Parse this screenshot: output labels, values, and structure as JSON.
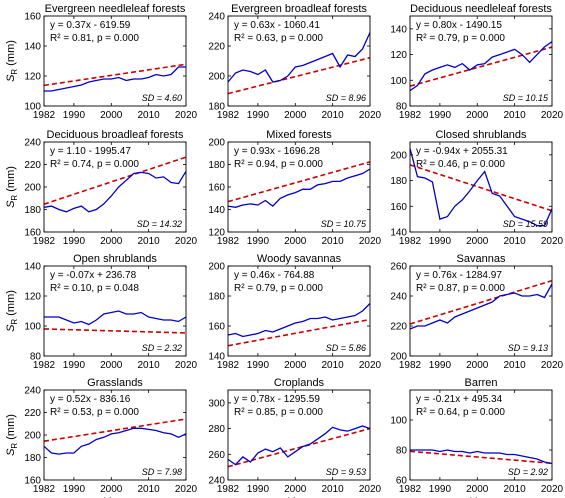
{
  "figure": {
    "x_label": "Year",
    "y_label_main": "S",
    "y_label_sub": "R",
    "y_label_unit": " (mm)"
  },
  "chart_data": [
    {
      "type": "line",
      "title": "Evergreen needleleaf forests",
      "x": [
        1982,
        1984,
        1986,
        1988,
        1990,
        1992,
        1994,
        1996,
        1998,
        2000,
        2002,
        2004,
        2006,
        2008,
        2010,
        2012,
        2014,
        2016,
        2018,
        2020
      ],
      "series": [
        {
          "values": [
            110,
            110,
            111,
            112,
            113,
            114,
            116,
            117,
            118,
            118,
            119,
            117,
            118,
            118,
            119,
            121,
            120,
            121,
            126,
            126
          ]
        }
      ],
      "fit": {
        "slope": 0.37,
        "intercept": -619.59
      },
      "equation": "y = 0.37x - 619.59",
      "r2": "R² = 0.81, p = 0.000",
      "sd": "SD = 4.60",
      "xlim": [
        1982,
        2020
      ],
      "ylim": [
        100,
        160
      ],
      "yticks": [
        100,
        120,
        140,
        160
      ],
      "xticks": [
        1982,
        1990,
        2000,
        2010,
        2020
      ],
      "show_x_ticklabels": true,
      "show_ylabel": true,
      "show_xlabel": false
    },
    {
      "type": "line",
      "title": "Evergreen broadleaf forests",
      "x": [
        1982,
        1984,
        1986,
        1988,
        1990,
        1992,
        1994,
        1996,
        1998,
        2000,
        2002,
        2004,
        2006,
        2008,
        2010,
        2012,
        2014,
        2016,
        2018,
        2020
      ],
      "series": [
        {
          "values": [
            196,
            202,
            204,
            203,
            201,
            204,
            196,
            197,
            200,
            206,
            207,
            209,
            211,
            213,
            215,
            206,
            214,
            213,
            218,
            229
          ]
        }
      ],
      "fit": {
        "slope": 0.63,
        "intercept": -1060.41
      },
      "equation": "y = 0.63x - 1060.41",
      "r2": "R² = 0.63, p = 0.000",
      "sd": "SD = 8.96",
      "xlim": [
        1982,
        2020
      ],
      "ylim": [
        180,
        240
      ],
      "yticks": [
        180,
        200,
        220,
        240
      ],
      "xticks": [
        1982,
        1990,
        2000,
        2010,
        2020
      ],
      "show_x_ticklabels": true,
      "show_ylabel": false,
      "show_xlabel": false
    },
    {
      "type": "line",
      "title": "Deciduous needleleaf forests",
      "x": [
        1982,
        1984,
        1986,
        1988,
        1990,
        1992,
        1994,
        1996,
        1998,
        2000,
        2002,
        2004,
        2006,
        2008,
        2010,
        2012,
        2014,
        2016,
        2018,
        2020
      ],
      "series": [
        {
          "values": [
            92,
            96,
            105,
            108,
            110,
            112,
            110,
            113,
            108,
            112,
            113,
            118,
            120,
            122,
            124,
            120,
            114,
            120,
            126,
            130
          ]
        }
      ],
      "fit": {
        "slope": 0.8,
        "intercept": -1490.15
      },
      "equation": "y = 0.80x - 1490.15",
      "r2": "R² = 0.79, p = 0.000",
      "sd": "SD = 10.15",
      "xlim": [
        1982,
        2020
      ],
      "ylim": [
        80,
        150
      ],
      "yticks": [
        80,
        100,
        120,
        140
      ],
      "xticks": [
        1982,
        1990,
        2000,
        2010,
        2020
      ],
      "show_x_ticklabels": true,
      "show_ylabel": false,
      "show_xlabel": false
    },
    {
      "type": "line",
      "title": "Deciduous broadleaf forests",
      "x": [
        1982,
        1984,
        1986,
        1988,
        1990,
        1992,
        1994,
        1996,
        1998,
        2000,
        2002,
        2004,
        2006,
        2008,
        2010,
        2012,
        2014,
        2016,
        2018,
        2020
      ],
      "series": [
        {
          "values": [
            182,
            183,
            180,
            178,
            181,
            183,
            178,
            180,
            185,
            192,
            200,
            206,
            212,
            213,
            212,
            208,
            209,
            204,
            203,
            214
          ]
        }
      ],
      "fit": {
        "slope": 1.1,
        "intercept": -1995.47
      },
      "equation": "y = 1.10 - 1995.47",
      "r2": "R² = 0.74, p = 0.000",
      "sd": "SD = 14.32",
      "xlim": [
        1982,
        2020
      ],
      "ylim": [
        160,
        240
      ],
      "yticks": [
        160,
        180,
        200,
        220,
        240
      ],
      "xticks": [
        1982,
        1990,
        2000,
        2010,
        2020
      ],
      "show_x_ticklabels": true,
      "show_ylabel": true,
      "show_xlabel": false
    },
    {
      "type": "line",
      "title": "Mixed forests",
      "x": [
        1982,
        1984,
        1986,
        1988,
        1990,
        1992,
        1994,
        1996,
        1998,
        2000,
        2002,
        2004,
        2006,
        2008,
        2010,
        2012,
        2014,
        2016,
        2018,
        2020
      ],
      "series": [
        {
          "values": [
            143,
            142,
            144,
            145,
            144,
            148,
            143,
            150,
            153,
            155,
            158,
            158,
            162,
            163,
            165,
            165,
            168,
            170,
            172,
            176
          ]
        }
      ],
      "fit": {
        "slope": 0.93,
        "intercept": -1696.28
      },
      "equation": "y = 0.93x - 1696.28",
      "r2": "R² = 0.94, p = 0.000",
      "sd": "SD = 10.75",
      "xlim": [
        1982,
        2020
      ],
      "ylim": [
        120,
        200
      ],
      "yticks": [
        120,
        140,
        160,
        180,
        200
      ],
      "xticks": [
        1982,
        1990,
        2000,
        2010,
        2020
      ],
      "show_x_ticklabels": true,
      "show_ylabel": false,
      "show_xlabel": false
    },
    {
      "type": "line",
      "title": "Closed shrublands",
      "x": [
        1982,
        1984,
        1986,
        1988,
        1990,
        1992,
        1994,
        1996,
        1998,
        2000,
        2002,
        2004,
        2006,
        2008,
        2010,
        2012,
        2014,
        2016,
        2018,
        2020
      ],
      "series": [
        {
          "values": [
            205,
            183,
            182,
            179,
            150,
            152,
            160,
            165,
            172,
            180,
            187,
            170,
            168,
            160,
            152,
            150,
            148,
            145,
            145,
            158
          ]
        }
      ],
      "fit": {
        "slope": -0.94,
        "intercept": 2055.31
      },
      "equation": "y = -0.94x + 2055.31",
      "r2": "R² = 0.46, p = 0.000",
      "sd": "SD = 15.59",
      "xlim": [
        1982,
        2020
      ],
      "ylim": [
        140,
        210
      ],
      "yticks": [
        140,
        160,
        180,
        200
      ],
      "xticks": [
        1982,
        1990,
        2000,
        2010,
        2020
      ],
      "show_x_ticklabels": true,
      "show_ylabel": false,
      "show_xlabel": false
    },
    {
      "type": "line",
      "title": "Open shrublands",
      "x": [
        1982,
        1984,
        1986,
        1988,
        1990,
        1992,
        1994,
        1996,
        1998,
        2000,
        2002,
        2004,
        2006,
        2008,
        2010,
        2012,
        2014,
        2016,
        2018,
        2020
      ],
      "series": [
        {
          "values": [
            106,
            106,
            106,
            104,
            102,
            103,
            101,
            104,
            108,
            109,
            110,
            108,
            108,
            109,
            106,
            105,
            104,
            104,
            103,
            106
          ]
        }
      ],
      "fit": {
        "slope": -0.07,
        "intercept": 236.78
      },
      "equation": "y = -0.07x + 236.78",
      "r2": "R² = 0.10, p = 0.048",
      "sd": "SD = 2.32",
      "xlim": [
        1982,
        2020
      ],
      "ylim": [
        80,
        140
      ],
      "yticks": [
        80,
        100,
        120,
        140
      ],
      "xticks": [
        1982,
        1990,
        2000,
        2010,
        2020
      ],
      "show_x_ticklabels": true,
      "show_ylabel": true,
      "show_xlabel": false
    },
    {
      "type": "line",
      "title": "Woody savannas",
      "x": [
        1982,
        1984,
        1986,
        1988,
        1990,
        1992,
        1994,
        1996,
        1998,
        2000,
        2002,
        2004,
        2006,
        2008,
        2010,
        2012,
        2014,
        2016,
        2018,
        2020
      ],
      "series": [
        {
          "values": [
            154,
            155,
            153,
            154,
            155,
            157,
            156,
            158,
            160,
            162,
            163,
            165,
            165,
            166,
            164,
            165,
            166,
            167,
            170,
            175
          ]
        }
      ],
      "fit": {
        "slope": 0.46,
        "intercept": -764.88
      },
      "equation": "y = 0.46x - 764.88",
      "r2": "R² = 0.79, p = 0.000",
      "sd": "SD = 5.86",
      "xlim": [
        1982,
        2020
      ],
      "ylim": [
        140,
        200
      ],
      "yticks": [
        140,
        160,
        180,
        200
      ],
      "xticks": [
        1982,
        1990,
        2000,
        2010,
        2020
      ],
      "show_x_ticklabels": true,
      "show_ylabel": false,
      "show_xlabel": false
    },
    {
      "type": "line",
      "title": "Savannas",
      "x": [
        1982,
        1984,
        1986,
        1988,
        1990,
        1992,
        1994,
        1996,
        1998,
        2000,
        2002,
        2004,
        2006,
        2008,
        2010,
        2012,
        2014,
        2016,
        2018,
        2020
      ],
      "series": [
        {
          "values": [
            218,
            220,
            220,
            222,
            224,
            222,
            226,
            228,
            230,
            232,
            234,
            236,
            240,
            241,
            242,
            240,
            240,
            241,
            239,
            248
          ]
        }
      ],
      "fit": {
        "slope": 0.76,
        "intercept": -1284.97
      },
      "equation": "y = 0.76x - 1284.97",
      "r2": "R² = 0.87, p = 0.000",
      "sd": "SD = 9.13",
      "xlim": [
        1982,
        2020
      ],
      "ylim": [
        200,
        260
      ],
      "yticks": [
        200,
        220,
        240,
        260
      ],
      "xticks": [
        1982,
        1990,
        2000,
        2010,
        2020
      ],
      "show_x_ticklabels": true,
      "show_ylabel": false,
      "show_xlabel": false
    },
    {
      "type": "line",
      "title": "Grasslands",
      "x": [
        1982,
        1984,
        1986,
        1988,
        1990,
        1992,
        1994,
        1996,
        1998,
        2000,
        2002,
        2004,
        2006,
        2008,
        2010,
        2012,
        2014,
        2016,
        2018,
        2020
      ],
      "series": [
        {
          "values": [
            190,
            184,
            183,
            184,
            184,
            190,
            192,
            196,
            198,
            201,
            202,
            204,
            206,
            206,
            205,
            204,
            202,
            201,
            198,
            201
          ]
        }
      ],
      "fit": {
        "slope": 0.52,
        "intercept": -836.16
      },
      "equation": "y = 0.52x - 836.16",
      "r2": "R² = 0.53, p = 0.000",
      "sd": "SD = 7.98",
      "xlim": [
        1982,
        2020
      ],
      "ylim": [
        160,
        240
      ],
      "yticks": [
        160,
        180,
        200,
        220,
        240
      ],
      "xticks": [
        1982,
        1990,
        2000,
        2010,
        2020
      ],
      "show_x_ticklabels": true,
      "show_ylabel": true,
      "show_xlabel": false
    },
    {
      "type": "line",
      "title": "Croplands",
      "x": [
        1982,
        1984,
        1986,
        1988,
        1990,
        1992,
        1994,
        1996,
        1998,
        2000,
        2002,
        2004,
        2006,
        2008,
        2010,
        2012,
        2014,
        2016,
        2018,
        2020
      ],
      "series": [
        {
          "values": [
            256,
            252,
            258,
            254,
            261,
            264,
            262,
            265,
            258,
            262,
            266,
            268,
            272,
            276,
            281,
            279,
            278,
            280,
            282,
            280
          ]
        }
      ],
      "fit": {
        "slope": 0.78,
        "intercept": -1295.59
      },
      "equation": "y = 0.78x - 1295.59",
      "r2": "R² = 0.85, p = 0.000",
      "sd": "SD = 9.53",
      "xlim": [
        1982,
        2020
      ],
      "ylim": [
        240,
        310
      ],
      "yticks": [
        240,
        260,
        280,
        300
      ],
      "xticks": [
        1982,
        1990,
        2000,
        2010,
        2020
      ],
      "show_x_ticklabels": true,
      "show_ylabel": false,
      "show_xlabel": true
    },
    {
      "type": "line",
      "title": "Barren",
      "x": [
        1982,
        1984,
        1986,
        1988,
        1990,
        1992,
        1994,
        1996,
        1998,
        2000,
        2002,
        2004,
        2006,
        2008,
        2010,
        2012,
        2014,
        2016,
        2018,
        2020
      ],
      "series": [
        {
          "values": [
            80,
            80,
            80,
            80,
            79,
            80,
            79,
            79,
            78,
            79,
            78,
            78,
            78,
            77,
            77,
            76,
            75,
            74,
            72,
            71
          ]
        }
      ],
      "fit": {
        "slope": -0.21,
        "intercept": 495.34
      },
      "equation": "y = -0.21x + 495.34",
      "r2": "R² = 0.64, p = 0.000",
      "sd": "SD = 2.92",
      "xlim": [
        1982,
        2020
      ],
      "ylim": [
        60,
        120
      ],
      "yticks": [
        60,
        80,
        100
      ],
      "xticks": [
        1982,
        1990,
        2000,
        2010,
        2020
      ],
      "show_x_ticklabels": true,
      "show_ylabel": false,
      "show_xlabel": false
    }
  ]
}
